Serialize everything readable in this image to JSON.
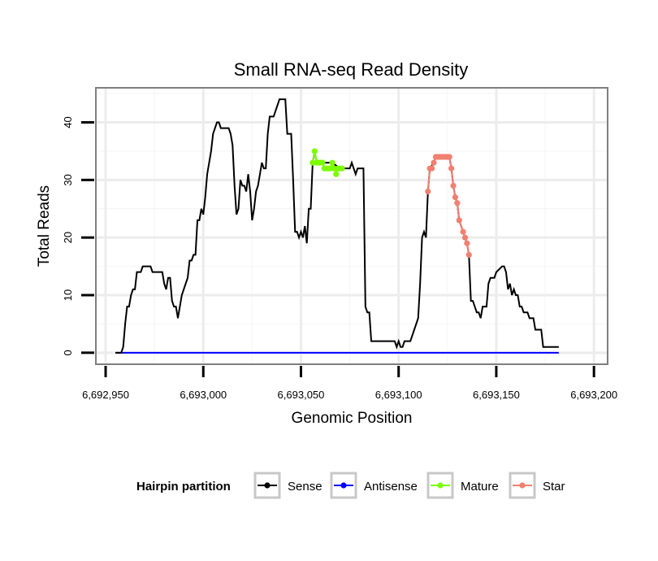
{
  "chart_data": {
    "type": "line",
    "title": "Small RNA-seq Read Density",
    "xlabel": "Genomic Position",
    "ylabel": "Total Reads",
    "xlim": [
      6692945,
      6693207
    ],
    "ylim": [
      -2,
      46
    ],
    "x_ticks": [
      6692950,
      6693000,
      6693050,
      6693100,
      6693150,
      6693200
    ],
    "x_tick_labels": [
      "6,692,950",
      "6,693,000",
      "6,693,050",
      "6,693,100",
      "6,693,150",
      "6,693,200"
    ],
    "y_ticks": [
      0,
      10,
      20,
      30,
      40
    ],
    "y_tick_labels": [
      "0",
      "10",
      "20",
      "30",
      "40"
    ],
    "grid": true,
    "legend": {
      "title": "Hairpin partition",
      "position": "bottom",
      "entries": [
        {
          "label": "Sense",
          "color": "#000000"
        },
        {
          "label": "Antisense",
          "color": "#0000ff"
        },
        {
          "label": "Mature",
          "color": "#7cfc00"
        },
        {
          "label": "Star",
          "color": "#f08070"
        }
      ]
    },
    "series": [
      {
        "name": "Sense",
        "color": "#000000",
        "style": "line",
        "points": [
          [
            6692955,
            0
          ],
          [
            6692958,
            0
          ],
          [
            6692959,
            1
          ],
          [
            6692960,
            5
          ],
          [
            6692961,
            8
          ],
          [
            6692962,
            8
          ],
          [
            6692963,
            10
          ],
          [
            6692964,
            11
          ],
          [
            6692965,
            11
          ],
          [
            6692966,
            14
          ],
          [
            6692967,
            14
          ],
          [
            6692968,
            14
          ],
          [
            6692969,
            15
          ],
          [
            6692973,
            15
          ],
          [
            6692974,
            14
          ],
          [
            6692977,
            14
          ],
          [
            6692979,
            14
          ],
          [
            6692980,
            12
          ],
          [
            6692981,
            11
          ],
          [
            6692982,
            13
          ],
          [
            6692983,
            13
          ],
          [
            6692984,
            9
          ],
          [
            6692985,
            8
          ],
          [
            6692986,
            8
          ],
          [
            6692987,
            6
          ],
          [
            6692988,
            8
          ],
          [
            6692989,
            10
          ],
          [
            6692991,
            12
          ],
          [
            6692992,
            13
          ],
          [
            6692993,
            16
          ],
          [
            6692994,
            16
          ],
          [
            6692995,
            17
          ],
          [
            6692996,
            17
          ],
          [
            6692997,
            23
          ],
          [
            6692998,
            23
          ],
          [
            6692999,
            25
          ],
          [
            6693000,
            24
          ],
          [
            6693001,
            27
          ],
          [
            6693002,
            31
          ],
          [
            6693003,
            33
          ],
          [
            6693004,
            35
          ],
          [
            6693005,
            38
          ],
          [
            6693006,
            39
          ],
          [
            6693007,
            40
          ],
          [
            6693008,
            40
          ],
          [
            6693009,
            39
          ],
          [
            6693013,
            39
          ],
          [
            6693014,
            38
          ],
          [
            6693015,
            36
          ],
          [
            6693016,
            29
          ],
          [
            6693017,
            24
          ],
          [
            6693018,
            25
          ],
          [
            6693019,
            30
          ],
          [
            6693020,
            29
          ],
          [
            6693021,
            29
          ],
          [
            6693022,
            28
          ],
          [
            6693023,
            31
          ],
          [
            6693024,
            28
          ],
          [
            6693025,
            23
          ],
          [
            6693026,
            25
          ],
          [
            6693027,
            28
          ],
          [
            6693028,
            29
          ],
          [
            6693029,
            31
          ],
          [
            6693030,
            33
          ],
          [
            6693031,
            32
          ],
          [
            6693032,
            32
          ],
          [
            6693033,
            38
          ],
          [
            6693034,
            41
          ],
          [
            6693035,
            41
          ],
          [
            6693036,
            41
          ],
          [
            6693037,
            42
          ],
          [
            6693038,
            43
          ],
          [
            6693039,
            44
          ],
          [
            6693040,
            44
          ],
          [
            6693042,
            44
          ],
          [
            6693043,
            38
          ],
          [
            6693045,
            38
          ],
          [
            6693046,
            30
          ],
          [
            6693047,
            21
          ],
          [
            6693048,
            21
          ],
          [
            6693049,
            20
          ],
          [
            6693050,
            21
          ],
          [
            6693051,
            20
          ],
          [
            6693052,
            22
          ],
          [
            6693053,
            19
          ],
          [
            6693054,
            25
          ],
          [
            6693055,
            25
          ],
          [
            6693056,
            33
          ],
          [
            6693057,
            35
          ],
          [
            6693058,
            33
          ],
          [
            6693066,
            33
          ],
          [
            6693070,
            32
          ],
          [
            6693075,
            32
          ],
          [
            6693076,
            33
          ],
          [
            6693078,
            31
          ],
          [
            6693079,
            32
          ],
          [
            6693082,
            32
          ],
          [
            6693083,
            8
          ],
          [
            6693084,
            7
          ],
          [
            6693085,
            7
          ],
          [
            6693086,
            2
          ],
          [
            6693098,
            2
          ],
          [
            6693099,
            1
          ],
          [
            6693100,
            2
          ],
          [
            6693101,
            1
          ],
          [
            6693102,
            1
          ],
          [
            6693103,
            2
          ],
          [
            6693106,
            2
          ],
          [
            6693107,
            3
          ],
          [
            6693108,
            4
          ],
          [
            6693110,
            6
          ],
          [
            6693111,
            12
          ],
          [
            6693112,
            20
          ],
          [
            6693113,
            21
          ],
          [
            6693114,
            20
          ],
          [
            6693115,
            28
          ],
          [
            6693116,
            32
          ],
          [
            6693118,
            33
          ],
          [
            6693119,
            34
          ],
          [
            6693126,
            34
          ],
          [
            6693127,
            32
          ],
          [
            6693128,
            29
          ],
          [
            6693129,
            27
          ],
          [
            6693130,
            26
          ],
          [
            6693131,
            23
          ],
          [
            6693133,
            21
          ],
          [
            6693134,
            20
          ],
          [
            6693135,
            19
          ],
          [
            6693136,
            17
          ],
          [
            6693137,
            9
          ],
          [
            6693138,
            9
          ],
          [
            6693139,
            8
          ],
          [
            6693140,
            7
          ],
          [
            6693141,
            7
          ],
          [
            6693142,
            6
          ],
          [
            6693143,
            8
          ],
          [
            6693145,
            8
          ],
          [
            6693146,
            12
          ],
          [
            6693147,
            13
          ],
          [
            6693149,
            13
          ],
          [
            6693150,
            14
          ],
          [
            6693153,
            15
          ],
          [
            6693154,
            15
          ],
          [
            6693155,
            14
          ],
          [
            6693156,
            11
          ],
          [
            6693157,
            12
          ],
          [
            6693158,
            10
          ],
          [
            6693159,
            11
          ],
          [
            6693160,
            10
          ],
          [
            6693161,
            10
          ],
          [
            6693162,
            8
          ],
          [
            6693163,
            8
          ],
          [
            6693164,
            7
          ],
          [
            6693166,
            7
          ],
          [
            6693167,
            6
          ],
          [
            6693169,
            6
          ],
          [
            6693170,
            4
          ],
          [
            6693173,
            4
          ],
          [
            6693174,
            1
          ],
          [
            6693182,
            1
          ]
        ]
      },
      {
        "name": "Antisense",
        "color": "#0000ff",
        "style": "line",
        "points": [
          [
            6692955,
            0
          ],
          [
            6693182,
            0
          ]
        ]
      },
      {
        "name": "Mature",
        "color": "#7cfc00",
        "style": "line+points",
        "points": [
          [
            6693056,
            33
          ],
          [
            6693057,
            35
          ],
          [
            6693058,
            33
          ],
          [
            6693059,
            33
          ],
          [
            6693060,
            33
          ],
          [
            6693061,
            33
          ],
          [
            6693062,
            32
          ],
          [
            6693063,
            32
          ],
          [
            6693064,
            32
          ],
          [
            6693065,
            32
          ],
          [
            6693066,
            33
          ],
          [
            6693067,
            32
          ],
          [
            6693068,
            31
          ],
          [
            6693069,
            32
          ],
          [
            6693070,
            32
          ],
          [
            6693071,
            32
          ]
        ]
      },
      {
        "name": "Star",
        "color": "#f08070",
        "style": "line+points",
        "points": [
          [
            6693115,
            28
          ],
          [
            6693116,
            32
          ],
          [
            6693117,
            32
          ],
          [
            6693118,
            33
          ],
          [
            6693119,
            34
          ],
          [
            6693120,
            34
          ],
          [
            6693121,
            34
          ],
          [
            6693122,
            34
          ],
          [
            6693123,
            34
          ],
          [
            6693124,
            34
          ],
          [
            6693125,
            34
          ],
          [
            6693126,
            34
          ],
          [
            6693127,
            32
          ],
          [
            6693128,
            29
          ],
          [
            6693129,
            27
          ],
          [
            6693130,
            26
          ],
          [
            6693131,
            23
          ],
          [
            6693133,
            21
          ],
          [
            6693134,
            20
          ],
          [
            6693135,
            19
          ],
          [
            6693136,
            17
          ]
        ]
      }
    ]
  }
}
